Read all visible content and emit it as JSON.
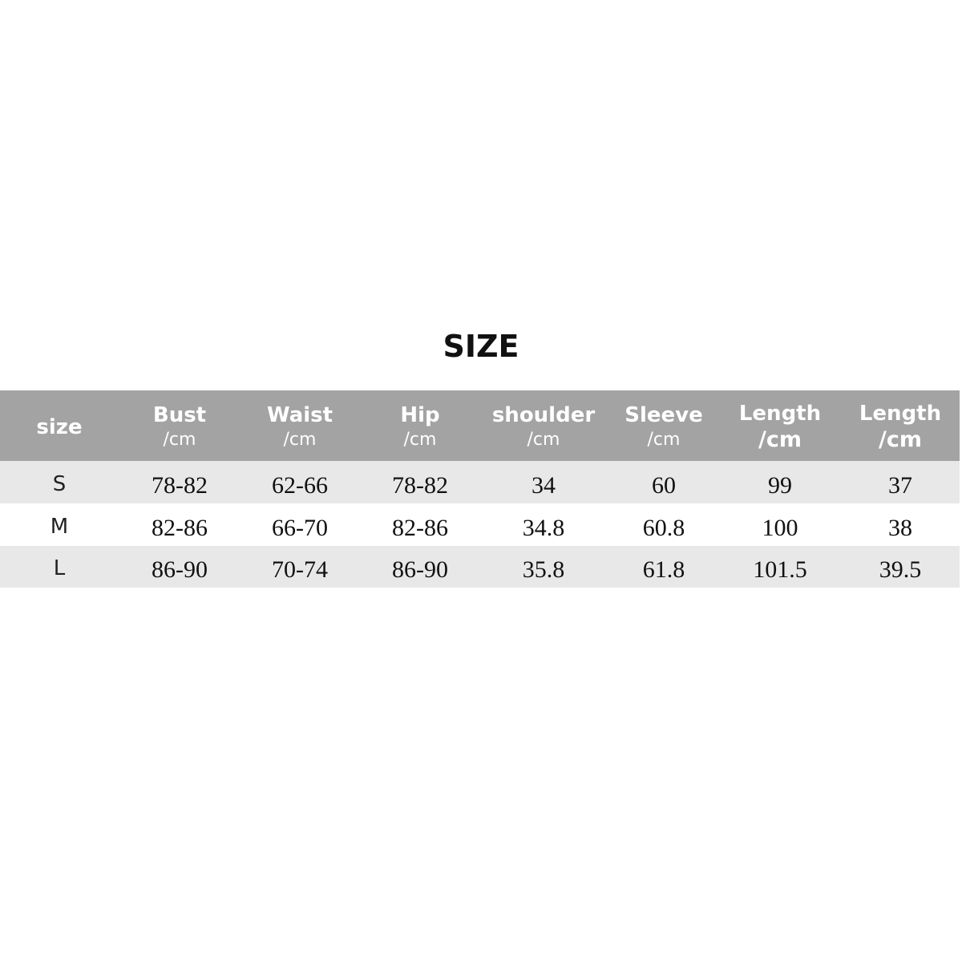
{
  "title": "SIZE",
  "table": {
    "headers": [
      {
        "label": "size",
        "unit": ""
      },
      {
        "label": "Bust",
        "unit": "/cm"
      },
      {
        "label": "Waist",
        "unit": "/cm"
      },
      {
        "label": "Hip",
        "unit": "/cm"
      },
      {
        "label": "shoulder",
        "unit": "/cm"
      },
      {
        "label": "Sleeve",
        "unit": "/cm"
      },
      {
        "label": "Length",
        "unit": "/cm"
      },
      {
        "label": "Length",
        "unit": "/cm"
      }
    ],
    "rows": [
      [
        "S",
        "78-82",
        "62-66",
        "78-82",
        "34",
        "60",
        "99",
        "37"
      ],
      [
        "M",
        "82-86",
        "66-70",
        "82-86",
        "34.8",
        "60.8",
        "100",
        "38"
      ],
      [
        "L",
        "86-90",
        "70-74",
        "86-90",
        "35.8",
        "61.8",
        "101.5",
        "39.5"
      ]
    ]
  },
  "colors": {
    "header_bg": "#a3a3a3",
    "stripe_bg": "#e8e8e8",
    "header_text": "#ffffff"
  }
}
